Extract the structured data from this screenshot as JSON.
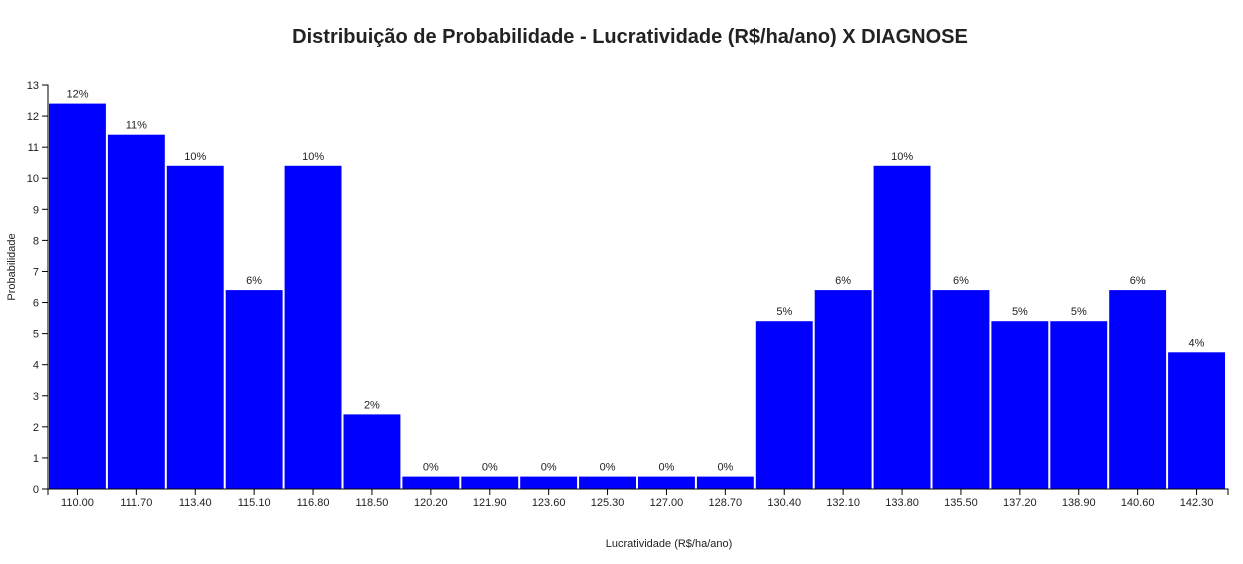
{
  "chart_data": {
    "type": "bar",
    "title": "Distribuição de Probabilidade - Lucratividade (R$/ha/ano) X DIAGNOSE",
    "xlabel": "Lucratividade (R$/ha/ano)",
    "ylabel": "Probabilidade",
    "ylim": [
      0,
      13
    ],
    "yticks": [
      "0",
      "1",
      "2",
      "3",
      "4",
      "5",
      "6",
      "7",
      "8",
      "9",
      "10",
      "11",
      "12",
      "13"
    ],
    "categories": [
      "110.00",
      "111.70",
      "113.40",
      "115.10",
      "116.80",
      "118.50",
      "120.20",
      "121.90",
      "123.60",
      "125.30",
      "127.00",
      "128.70",
      "130.40",
      "132.10",
      "133.80",
      "135.50",
      "137.20",
      "138.90",
      "140.60",
      "142.30"
    ],
    "values": [
      12.4,
      11.4,
      10.4,
      6.4,
      10.4,
      2.4,
      0.4,
      0.4,
      0.4,
      0.4,
      0.4,
      0.4,
      5.4,
      6.4,
      10.4,
      6.4,
      5.4,
      5.4,
      6.4,
      4.4
    ],
    "bar_labels": [
      "12%",
      "11%",
      "10%",
      "6%",
      "10%",
      "2%",
      "0%",
      "0%",
      "0%",
      "0%",
      "0%",
      "0%",
      "5%",
      "6%",
      "10%",
      "6%",
      "5%",
      "5%",
      "6%",
      "4%"
    ],
    "bar_color": "#0000ff",
    "grid": false
  }
}
